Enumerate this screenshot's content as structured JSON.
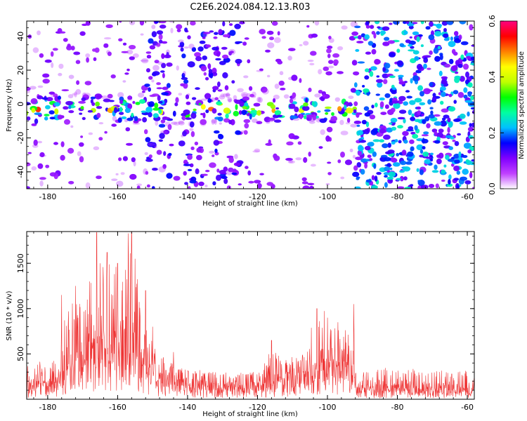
{
  "figure": {
    "title": "C2E6.2024.084.12.13.R03"
  },
  "chart_data": [
    {
      "type": "heatmap",
      "title": "",
      "xlabel": "Height of straight line (km)",
      "ylabel": "Frequency (Hz)",
      "xlim": [
        -186,
        -58
      ],
      "ylim": [
        -50,
        49
      ],
      "x_ticks": [
        -180,
        -160,
        -140,
        -120,
        -100,
        -80,
        -60
      ],
      "y_ticks": [
        -40,
        -20,
        0,
        20,
        40
      ],
      "x_tick_labels": [
        "-180",
        "-160",
        "-140",
        "-120",
        "-100",
        "-80",
        "-60"
      ],
      "y_tick_labels": [
        "-40",
        "-20",
        "0",
        "20",
        "40"
      ],
      "colorbar": {
        "label": "Normalized spectral amplitude",
        "range": [
          0.0,
          0.6
        ],
        "ticks": [
          0.0,
          0.2,
          0.4,
          0.6
        ],
        "tick_labels": [
          "0.0",
          "0.2",
          "0.4",
          "0.6"
        ],
        "colormap": [
          "#ffffff",
          "#c040ff",
          "#8000ff",
          "#0000ff",
          "#00c0ff",
          "#00ffa0",
          "#00ff00",
          "#c0ff00",
          "#ffff00",
          "#ff8000",
          "#ff0000",
          "#ff0080"
        ]
      },
      "features": [
        {
          "region": "central band",
          "x_range": [
            -186,
            -92
          ],
          "y_center": -3,
          "y_halfwidth": 9,
          "peak_amplitude": 0.55
        },
        {
          "region": "sparse column",
          "x_range": [
            -152,
            -145
          ],
          "y_range": [
            -50,
            49
          ],
          "amplitude": 0.1
        },
        {
          "region": "sparse column",
          "x_range": [
            -142,
            -125
          ],
          "y_range": [
            -50,
            49
          ],
          "amplitude": 0.1
        },
        {
          "region": "dense noise",
          "x_range": [
            -92,
            -58
          ],
          "y_range": [
            -50,
            49
          ],
          "amplitude": 0.2
        }
      ],
      "grid": false
    },
    {
      "type": "line",
      "title": "",
      "xlabel": "Height of straight line (km)",
      "ylabel": "SNR (10 * v/v)",
      "xlim": [
        -186,
        -58
      ],
      "ylim": [
        0,
        1850
      ],
      "x_ticks": [
        -180,
        -160,
        -140,
        -120,
        -100,
        -80,
        -60
      ],
      "y_ticks": [
        500,
        1000,
        1500
      ],
      "x_tick_labels": [
        "-180",
        "-160",
        "-140",
        "-120",
        "-100",
        "-80",
        "-60"
      ],
      "y_tick_labels": [
        "500",
        "1000",
        "1500"
      ],
      "line_color": "#ee3333",
      "grid": false,
      "envelope": {
        "x": [
          -186,
          -182,
          -178,
          -176,
          -174,
          -172,
          -170,
          -168,
          -166,
          -164,
          -162,
          -160,
          -158,
          -156,
          -154,
          -152,
          -150,
          -148,
          -146,
          -144,
          -140,
          -136,
          -132,
          -128,
          -124,
          -120,
          -116,
          -114,
          -112,
          -110,
          -108,
          -106,
          -104,
          -102,
          -100,
          -98,
          -96,
          -94,
          -92.5,
          -92,
          -88,
          -84,
          -80,
          -76,
          -72,
          -68,
          -64,
          -60,
          -58
        ],
        "y_base": [
          150,
          160,
          180,
          250,
          350,
          420,
          500,
          520,
          550,
          560,
          550,
          600,
          620,
          600,
          520,
          380,
          280,
          230,
          200,
          190,
          170,
          150,
          140,
          140,
          140,
          150,
          180,
          200,
          220,
          230,
          240,
          250,
          300,
          340,
          380,
          360,
          340,
          320,
          300,
          110,
          100,
          100,
          100,
          100,
          100,
          100,
          100,
          100,
          100
        ],
        "y_peak": [
          450,
          450,
          500,
          800,
          1000,
          1150,
          1250,
          1300,
          1450,
          1500,
          1550,
          1600,
          1550,
          1850,
          1400,
          1000,
          700,
          550,
          500,
          420,
          350,
          320,
          300,
          300,
          300,
          320,
          550,
          500,
          450,
          480,
          500,
          600,
          900,
          1000,
          950,
          800,
          750,
          800,
          1050,
          300,
          300,
          350,
          320,
          350,
          300,
          320,
          300,
          320,
          300
        ]
      },
      "series": [
        {
          "x": [
            -176,
            -172,
            -168,
            -166,
            -165,
            -163,
            -160,
            -157,
            -156,
            -155,
            -152,
            -150,
            -144,
            -116,
            -103,
            -100,
            -97,
            -92.5
          ],
          "y": [
            1150,
            1250,
            1300,
            1840,
            1500,
            1620,
            1500,
            1830,
            1850,
            1550,
            1200,
            800,
            520,
            650,
            1000,
            900,
            850,
            1050
          ]
        }
      ]
    }
  ]
}
